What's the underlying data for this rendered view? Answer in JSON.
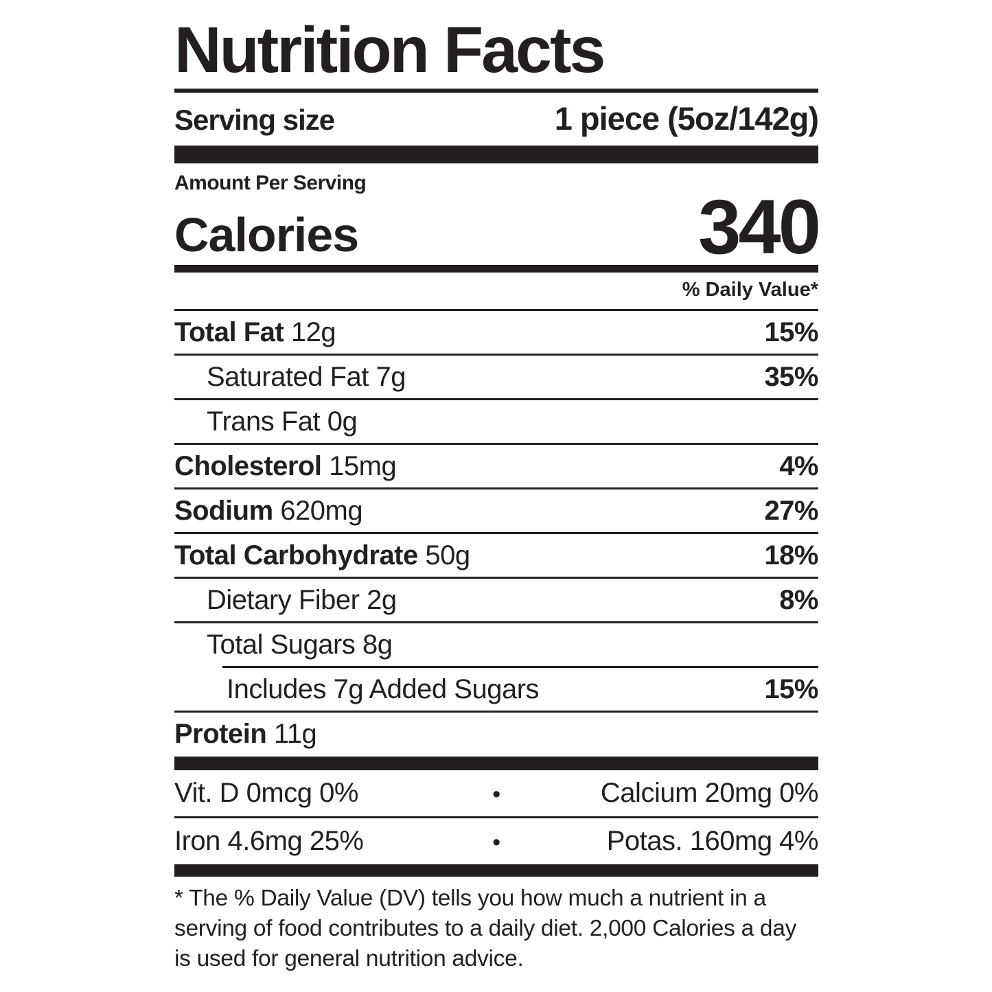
{
  "label": {
    "title": "Nutrition Facts",
    "serving": {
      "label": "Serving size",
      "value": "1 piece (5oz/142g)"
    },
    "calories": {
      "eyebrow": "Amount Per Serving",
      "label": "Calories",
      "value": "340"
    },
    "daily_value_header": "% Daily Value*",
    "nutrients": [
      {
        "name": "Total Fat",
        "amount": "12g",
        "dv": "15%"
      },
      {
        "name": "Saturated Fat",
        "amount": "7g",
        "dv": "35%"
      },
      {
        "name": "Trans Fat",
        "amount": "0g",
        "dv": ""
      },
      {
        "name": "Cholesterol",
        "amount": "15mg",
        "dv": "4%"
      },
      {
        "name": "Sodium",
        "amount": "620mg",
        "dv": "27%"
      },
      {
        "name": "Total Carbohydrate",
        "amount": "50g",
        "dv": "18%"
      },
      {
        "name": "Dietary Fiber",
        "amount": "2g",
        "dv": "8%"
      },
      {
        "name": "Total Sugars",
        "amount": "8g",
        "dv": ""
      },
      {
        "name": "Includes 7g Added Sugars",
        "amount": "",
        "dv": "15%"
      },
      {
        "name": "Protein",
        "amount": "11g",
        "dv": ""
      }
    ],
    "micronutrients": {
      "separator": "•",
      "rows": [
        {
          "left": "Vit. D 0mcg 0%",
          "right": "Calcium 20mg 0%"
        },
        {
          "left": "Iron 4.6mg 25%",
          "right": "Potas. 160mg 4%"
        }
      ]
    },
    "footnote": "* The % Daily Value (DV) tells you how much a nutrient in a serving of food contributes to a daily diet. 2,000 Calories a day is used for general nutrition advice.",
    "ink_color": "#231f20",
    "background_color": "#ffffff"
  }
}
